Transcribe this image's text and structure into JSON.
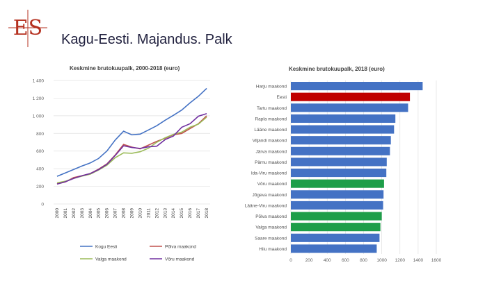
{
  "page": {
    "title": "Kagu-Eesti. Majandus. Palk",
    "logo_text": "ES"
  },
  "colors": {
    "logo": "#b5301f",
    "title": "#1f1f3d",
    "harju_bar": "#4472c4",
    "eesti_bar": "#c00000",
    "green_bar": "#1e9e49",
    "kagu_eesti_line": "#4472c4",
    "polva_line": "#c0504d",
    "valga_line": "#9bbb59",
    "voru_line": "#7030a0"
  },
  "chart_data": [
    {
      "type": "line",
      "title": "Keskmine brutokuupalk, 2000-2018 (euro)",
      "x": [
        "2000",
        "2001",
        "2002",
        "2003",
        "2004",
        "2005",
        "2006",
        "2007",
        "2008",
        "2009",
        "2010",
        "2011",
        "2012",
        "2013",
        "2014",
        "2015",
        "2016",
        "2017",
        "2018"
      ],
      "ylim": [
        0,
        1400
      ],
      "yticks": [
        "0",
        "200",
        "400",
        "600",
        "800",
        "1 000",
        "1 200",
        "1 400"
      ],
      "ytick_values": [
        0,
        200,
        400,
        600,
        800,
        1000,
        1200,
        1400
      ],
      "grid": true,
      "legend_position": "bottom",
      "series": [
        {
          "name": "Kogu Eesti",
          "color": "#4472c4",
          "values": [
            314,
            352,
            392,
            430,
            466,
            516,
            601,
            725,
            825,
            784,
            792,
            839,
            887,
            949,
            1005,
            1065,
            1146,
            1221,
            1310
          ]
        },
        {
          "name": "Põlva maakond",
          "color": "#c0504d",
          "values": [
            230,
            250,
            300,
            320,
            345,
            395,
            455,
            555,
            675,
            645,
            625,
            668,
            710,
            745,
            785,
            800,
            855,
            910,
            1000
          ]
        },
        {
          "name": "Valga maakond",
          "color": "#9bbb59",
          "values": [
            240,
            258,
            290,
            316,
            338,
            385,
            440,
            525,
            580,
            575,
            592,
            632,
            700,
            750,
            790,
            815,
            870,
            905,
            985
          ]
        },
        {
          "name": "Võru maakond",
          "color": "#7030a0",
          "values": [
            225,
            252,
            290,
            320,
            345,
            390,
            450,
            550,
            660,
            640,
            630,
            648,
            655,
            730,
            770,
            870,
            910,
            995,
            1025
          ]
        }
      ]
    },
    {
      "type": "bar",
      "title": "Keskmine brutokuupalk, 2018 (euro)",
      "orientation": "horizontal",
      "categories": [
        "Harju maakond",
        "Eesti",
        "Tartu maakond",
        "Rapla maakond",
        "Lääne maakond",
        "Viljandi maakond",
        "Järva maakond",
        "Pärnu maakond",
        "Ida-Viru maakond",
        "Võru maakond",
        "Jõgeva maakond",
        "Lääne-Viru maakond",
        "Põlva maakond",
        "Valga maakond",
        "Saare maakond",
        "Hiiu maakond"
      ],
      "values": [
        1450,
        1310,
        1290,
        1150,
        1135,
        1100,
        1090,
        1055,
        1050,
        1025,
        1020,
        1015,
        1000,
        985,
        975,
        945
      ],
      "colors": [
        "#4472c4",
        "#c00000",
        "#4472c4",
        "#4472c4",
        "#4472c4",
        "#4472c4",
        "#4472c4",
        "#4472c4",
        "#4472c4",
        "#1e9e49",
        "#4472c4",
        "#4472c4",
        "#1e9e49",
        "#1e9e49",
        "#4472c4",
        "#4472c4"
      ],
      "xlim": [
        0,
        1600
      ],
      "xticks": [
        "0",
        "200",
        "400",
        "600",
        "800",
        "1000",
        "1200",
        "1400",
        "1600"
      ],
      "xtick_values": [
        0,
        200,
        400,
        600,
        800,
        1000,
        1200,
        1400,
        1600
      ],
      "grid": true
    }
  ]
}
